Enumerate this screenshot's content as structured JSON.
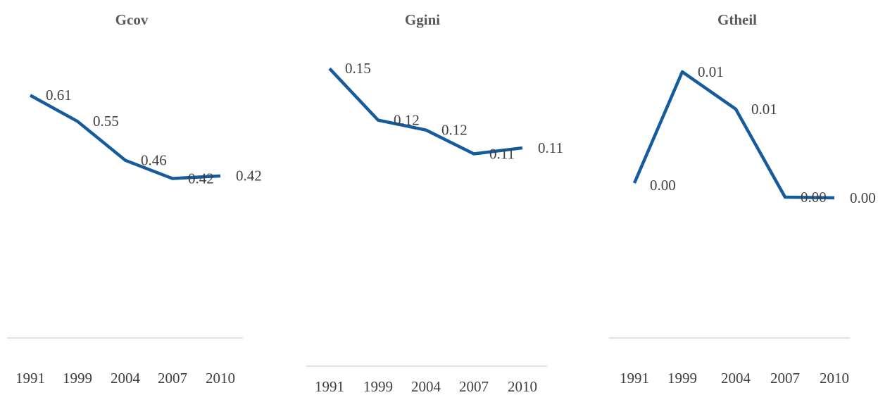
{
  "chart_data": [
    {
      "type": "line",
      "title": "Gcov",
      "categories": [
        "1991",
        "1999",
        "2004",
        "2007",
        "2010"
      ],
      "values": [
        0.61,
        0.55,
        0.46,
        0.418,
        0.424
      ],
      "value_labels": [
        "0.61",
        "0.55",
        "0.46",
        "0.42",
        "0.42"
      ],
      "color": "#165b9c",
      "ylim": [
        0.05,
        0.7
      ]
    },
    {
      "type": "line",
      "title": "Ggini",
      "categories": [
        "1991",
        "1999",
        "2004",
        "2007",
        "2010"
      ],
      "values": [
        0.15,
        0.124,
        0.119,
        0.107,
        0.11
      ],
      "value_labels": [
        "0.15",
        "0.12",
        "0.12",
        "0.11",
        "0.11"
      ],
      "color": "#165b9c",
      "ylim": [
        0,
        0.17
      ]
    },
    {
      "type": "line",
      "title": "Gtheil",
      "categories": [
        "1991",
        "1999",
        "2004",
        "2007",
        "2010"
      ],
      "values": [
        0.002,
        0.0099,
        0.00725,
        0.001,
        0.00095
      ],
      "value_labels": [
        "0.00",
        "0.01",
        "0.01",
        "0.00",
        "0.00"
      ],
      "color": "#165b9c",
      "ylim": [
        -0.009,
        0.012
      ]
    }
  ]
}
